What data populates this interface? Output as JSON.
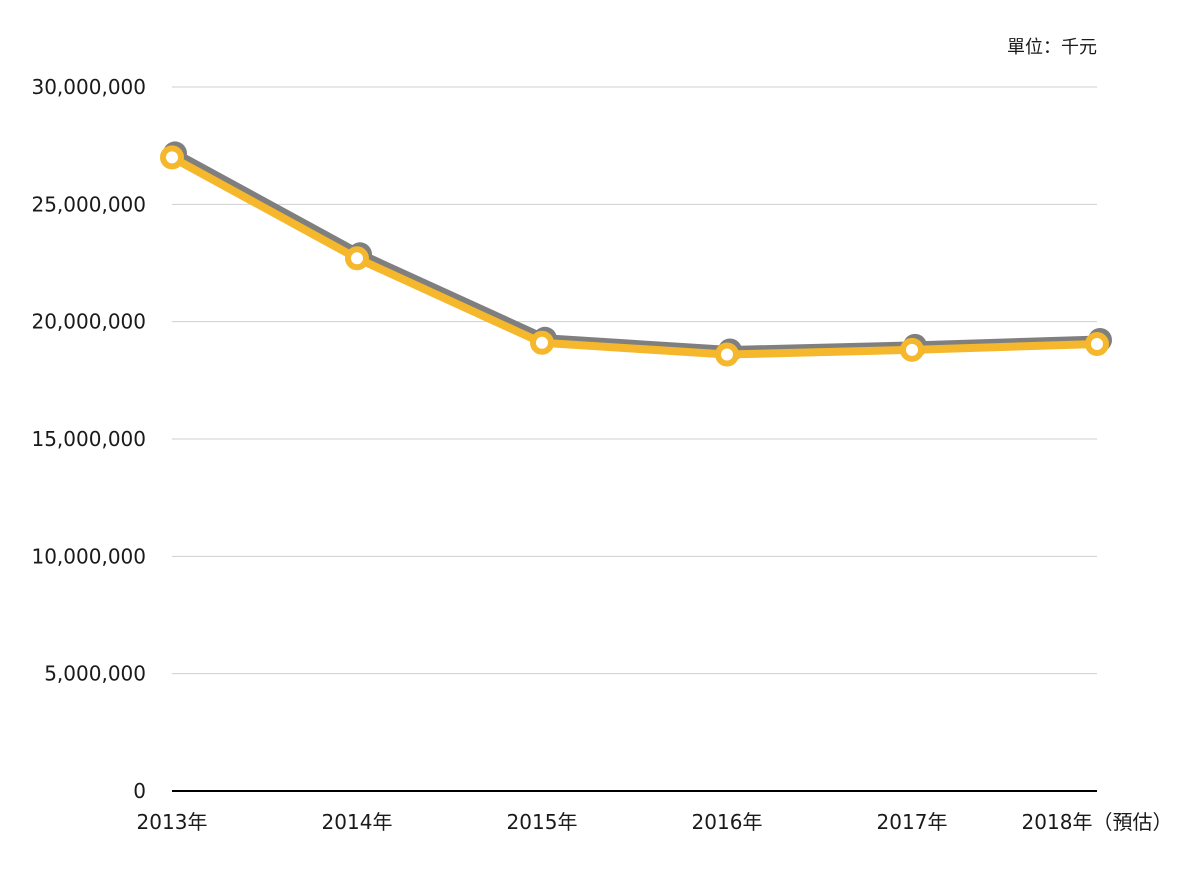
{
  "chart_data": {
    "type": "line",
    "unit_label": "單位：千元",
    "categories": [
      "2013年",
      "2014年",
      "2015年",
      "2016年",
      "2017年",
      "2018年（預估）"
    ],
    "series": [
      {
        "values": [
          27000000,
          22700000,
          19100000,
          18600000,
          18800000,
          19050000
        ],
        "color": "#f5b72b",
        "shadow_color": "#7f7f7f",
        "marker_fill": "#ffffff"
      }
    ],
    "ylim": [
      0,
      30000000
    ],
    "yticks": [
      0,
      5000000,
      10000000,
      15000000,
      20000000,
      25000000,
      30000000
    ],
    "ytick_labels": [
      "0",
      "5,000,000",
      "10,000,000",
      "15,000,000",
      "20,000,000",
      "25,000,000",
      "30,000,000"
    ],
    "grid": true,
    "xlabel": "",
    "ylabel": "",
    "title": ""
  }
}
